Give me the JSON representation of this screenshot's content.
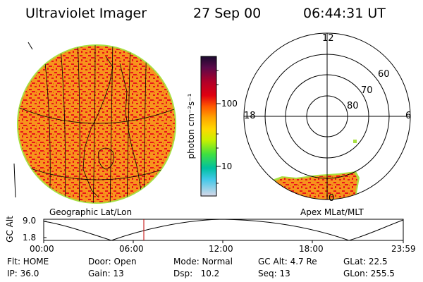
{
  "header": {
    "instrument": "Ultraviolet Imager",
    "date": "27 Sep 00",
    "time": "06:44:31 UT"
  },
  "colorbar": {
    "unit_label": "photon cm⁻²s⁻¹",
    "tick_labels": [
      "100",
      "10"
    ],
    "colors": [
      "#1a0a2e",
      "#5b0a4a",
      "#b0002a",
      "#e00010",
      "#ff5a00",
      "#ffa500",
      "#ffd800",
      "#c8f000",
      "#40e040",
      "#00c0a0",
      "#40c8e8",
      "#d8d8e8"
    ]
  },
  "geo_panel": {
    "label": "Geographic Lat/Lon",
    "fill_color": "#f7941d",
    "speckle_color": "#e8141a"
  },
  "polar_panel": {
    "label": "Apex MLat/MLT",
    "mlt_labels": {
      "top": "12",
      "left": "18",
      "right": "6",
      "bottom": "0"
    },
    "lat_labels": [
      "60",
      "70",
      "80"
    ]
  },
  "altitude_plot": {
    "axis_label": "GC Alt",
    "y_ticks": [
      "9.0",
      "1.8"
    ],
    "x_ticks": [
      "00:00",
      "06:00",
      "12:00",
      "18:00",
      "23:59"
    ],
    "marker_time": "06:44",
    "marker_color": "#c00000"
  },
  "info": {
    "rows": [
      [
        "Flt: HOME",
        "Door: Open",
        "Mode: Normal",
        "GC Alt: 4.7 Re",
        "GLat: 22.5"
      ],
      [
        "IP: 36.0",
        "Gain: 13",
        "Dsp:   10.2",
        "Seq: 13",
        "GLon: 255.5"
      ]
    ]
  }
}
